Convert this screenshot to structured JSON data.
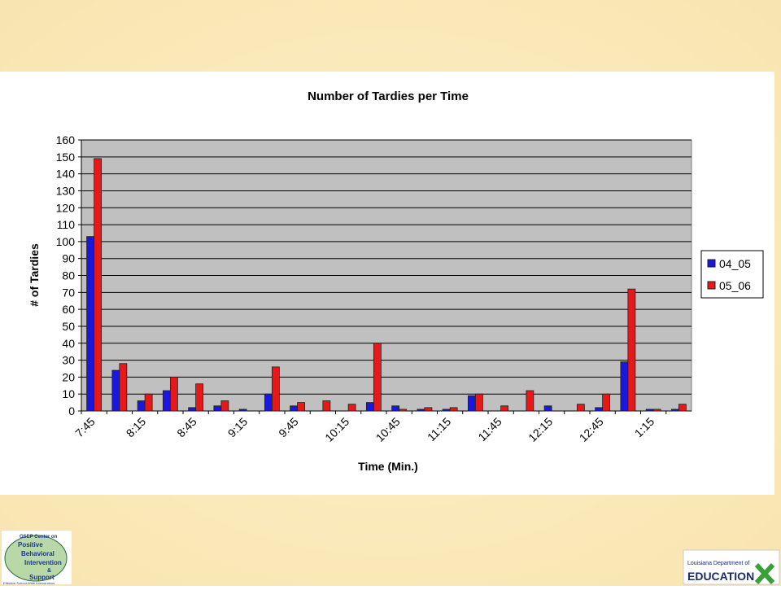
{
  "chart_data": {
    "type": "bar",
    "title": "Number of Tardies per Time",
    "xlabel": "Time (Min.)",
    "ylabel": "# of Tardies",
    "categories": [
      "7:45",
      null,
      "8:15",
      null,
      "8:45",
      null,
      "9:15",
      null,
      "9:45",
      null,
      "10:15",
      null,
      "10:45",
      null,
      "11:15",
      null,
      "11:45",
      null,
      "12:15",
      null,
      "12:45",
      null,
      "1:15",
      null
    ],
    "series": [
      {
        "name": "04_05",
        "color": "#1818e0",
        "values": [
          103,
          24,
          6,
          12,
          2,
          3,
          1,
          10,
          3,
          0,
          0,
          5,
          3,
          1,
          1,
          9,
          0,
          0,
          3,
          0,
          2,
          29,
          1,
          1
        ]
      },
      {
        "name": "05_06",
        "color": "#e81818",
        "values": [
          149,
          28,
          10,
          20,
          16,
          6,
          0,
          26,
          5,
          6,
          4,
          40,
          1,
          2,
          2,
          10,
          3,
          12,
          0,
          4,
          10,
          72,
          1,
          4
        ]
      }
    ],
    "ylim": [
      0,
      160
    ],
    "yticks": [
      0,
      10,
      20,
      30,
      40,
      50,
      60,
      70,
      80,
      90,
      100,
      110,
      120,
      130,
      140,
      150,
      160
    ],
    "grid": true,
    "legend": "right"
  },
  "logos": {
    "left": [
      "OSEP Center on",
      "Positive",
      "Behavioral",
      "Intervention",
      "&",
      "Support",
      "Effective School-Wide Interventions"
    ],
    "right": [
      "Louisiana Department of",
      "EDUCATION"
    ]
  }
}
